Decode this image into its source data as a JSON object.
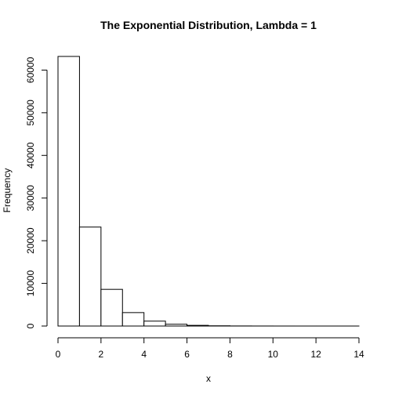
{
  "chart_data": {
    "type": "bar",
    "title": "The Exponential Distribution, Lambda = 1",
    "xlabel": "x",
    "ylabel": "Frequency",
    "bin_edges": [
      0,
      1,
      2,
      3,
      4,
      5,
      6,
      7,
      8,
      9,
      10,
      11,
      12,
      13,
      14
    ],
    "values": [
      63200,
      23200,
      8600,
      3150,
      1150,
      420,
      160,
      55,
      20,
      8,
      3,
      1,
      1,
      1
    ],
    "xlim": [
      0,
      14
    ],
    "ylim": [
      0,
      63200
    ],
    "xticks": [
      0,
      2,
      4,
      6,
      8,
      10,
      12,
      14
    ],
    "yticks": [
      0,
      10000,
      20000,
      30000,
      40000,
      50000,
      60000
    ],
    "xtick_labels": [
      "0",
      "2",
      "4",
      "6",
      "8",
      "10",
      "12",
      "14"
    ],
    "ytick_labels": [
      "0",
      "10000",
      "20000",
      "30000",
      "40000",
      "50000",
      "60000"
    ],
    "grid": false,
    "legend": "none",
    "colors": {
      "bar_fill": "#ffffff",
      "bar_stroke": "#000000",
      "axis": "#000000"
    }
  }
}
